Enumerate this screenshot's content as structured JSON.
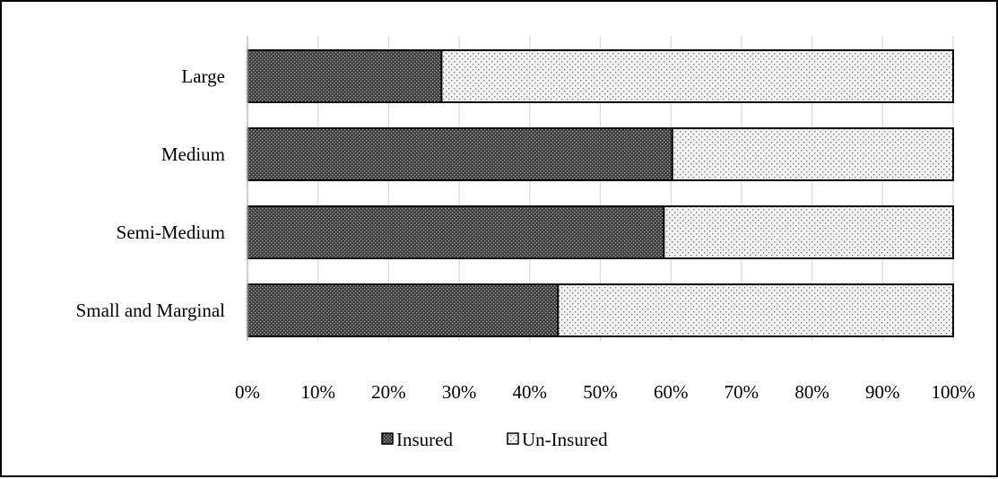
{
  "chart_data": {
    "type": "bar",
    "orientation": "horizontal",
    "stacked": "percent",
    "categories": [
      "Large",
      "Medium",
      "Semi-Medium",
      "Small and Marginal"
    ],
    "series": [
      {
        "name": "Insured",
        "values": [
          27.5,
          60.2,
          59.0,
          44.0
        ],
        "color": "#4a4a4a",
        "pattern": "dense-dots"
      },
      {
        "name": "Un-Insured",
        "values": [
          72.5,
          39.8,
          41.0,
          56.0
        ],
        "color": "#e6e6e6",
        "pattern": "sparse-dots"
      }
    ],
    "xlim": [
      0,
      100
    ],
    "x_ticks": [
      "0%",
      "10%",
      "20%",
      "30%",
      "40%",
      "50%",
      "60%",
      "70%",
      "80%",
      "90%",
      "100%"
    ],
    "grid": "vertical",
    "legend": "bottom-center",
    "title": "",
    "xlabel": "",
    "ylabel": ""
  }
}
